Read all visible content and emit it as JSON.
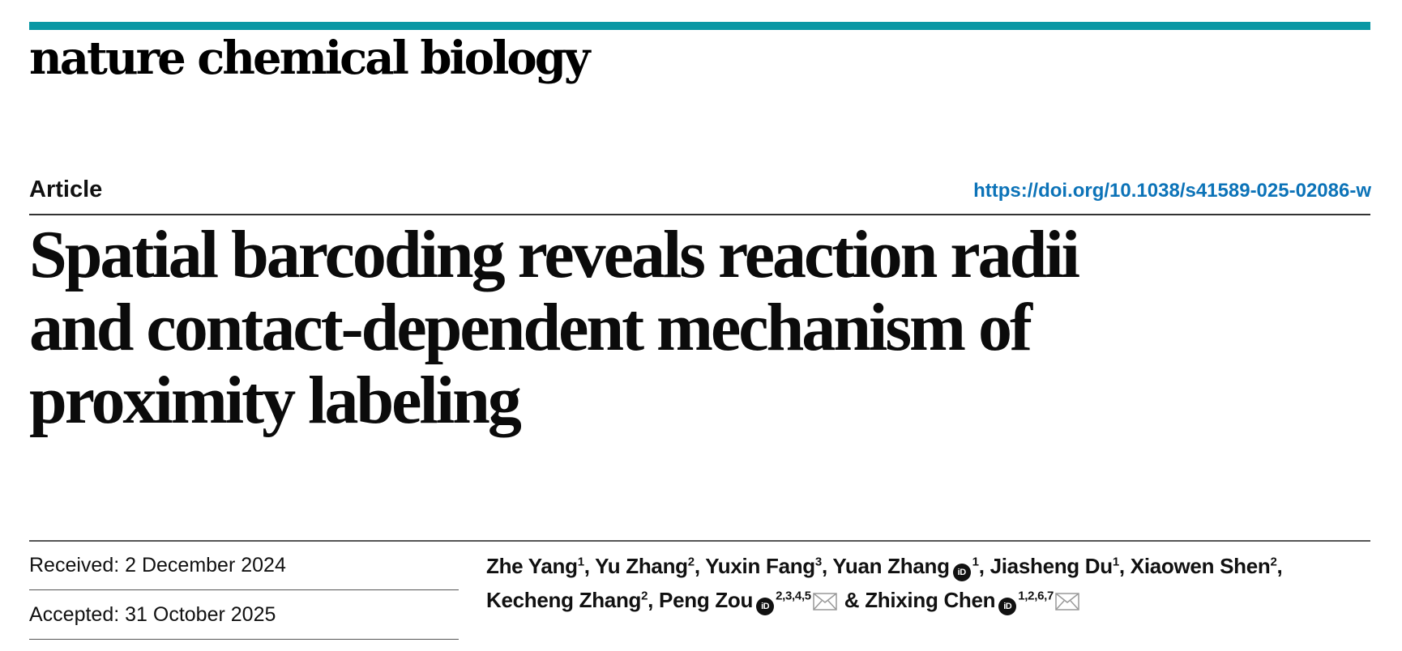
{
  "journal": {
    "name": "nature chemical biology",
    "accent_color": "#0a97a4"
  },
  "article": {
    "type": "Article",
    "doi": "https://doi.org/10.1038/s41589-025-02086-w",
    "title_lines": [
      "Spatial barcoding reveals reaction radii",
      "and contact-dependent mechanism of",
      "proximity labeling"
    ]
  },
  "dates": {
    "received": "Received: 2 December 2024",
    "accepted": "Accepted: 31 October 2025"
  },
  "authors": [
    {
      "name": "Zhe Yang",
      "affil": "1",
      "orcid": false,
      "email": false,
      "sep": ", "
    },
    {
      "name": "Yu Zhang",
      "affil": "2",
      "orcid": false,
      "email": false,
      "sep": ", "
    },
    {
      "name": "Yuxin Fang",
      "affil": "3",
      "orcid": false,
      "email": false,
      "sep": ", "
    },
    {
      "name": "Yuan Zhang",
      "affil": "1",
      "orcid": true,
      "email": false,
      "sep": ", "
    },
    {
      "name": "Jiasheng Du",
      "affil": "1",
      "orcid": false,
      "email": false,
      "sep": ", "
    },
    {
      "name": "Xiaowen Shen",
      "affil": "2",
      "orcid": false,
      "email": false,
      "sep": ", "
    },
    {
      "name": "Kecheng Zhang",
      "affil": "2",
      "orcid": false,
      "email": false,
      "sep": ", "
    },
    {
      "name": "Peng Zou",
      "affil": "2,3,4,5",
      "orcid": true,
      "email": true,
      "sep": " & "
    },
    {
      "name": "Zhixing Chen",
      "affil": "1,2,6,7",
      "orcid": true,
      "email": true,
      "sep": ""
    }
  ],
  "icons": {
    "orcid": "orcid-icon",
    "email": "envelope-icon"
  }
}
